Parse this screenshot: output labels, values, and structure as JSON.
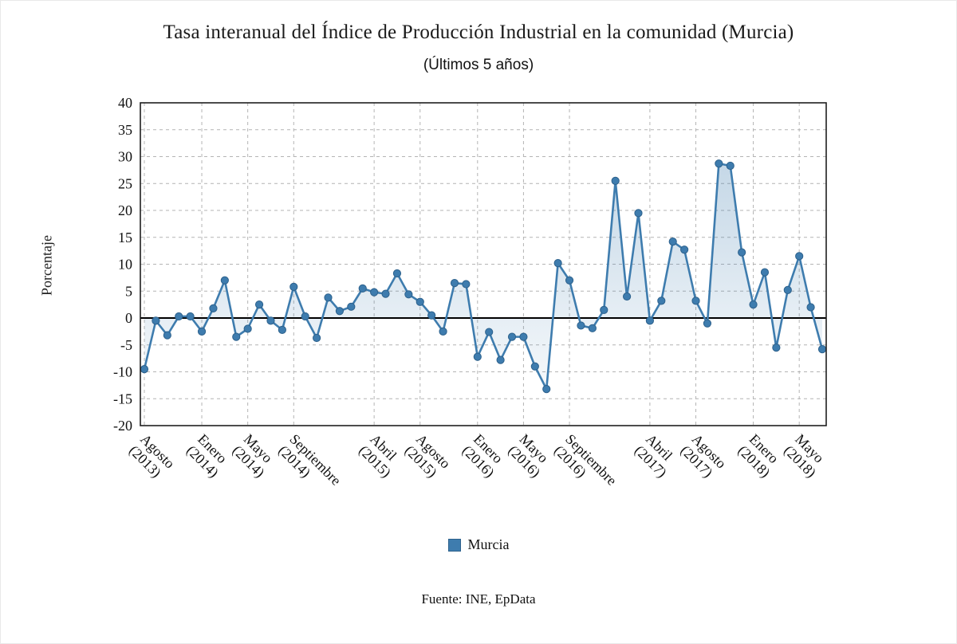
{
  "title": "Tasa interanual del Índice de Producción Industrial en la comunidad (Murcia)",
  "subtitle": "(Últimos 5 años)",
  "source": "Fuente: INE, EpData",
  "accent_color": "#3e7cae",
  "chart_data": {
    "type": "line",
    "title": "Tasa interanual del Índice de Producción Industrial en la comunidad (Murcia)",
    "subtitle": "(Últimos 5 años)",
    "xlabel": "",
    "ylabel": "Porcentaje",
    "ylim": [
      -20,
      40
    ],
    "ytick_step": 5,
    "grid": "dashed",
    "legend_position": "bottom",
    "frequency": "monthly",
    "x_start": "Agosto 2013",
    "x_end": "Julio 2018",
    "series": [
      {
        "name": "Murcia",
        "color": "#3e7cae",
        "values": [
          -9.5,
          -0.5,
          -3.2,
          0.3,
          0.3,
          -2.5,
          1.8,
          7.0,
          -3.5,
          -2.0,
          2.5,
          -0.5,
          -2.2,
          5.8,
          0.3,
          -3.7,
          3.8,
          1.3,
          2.1,
          5.5,
          4.8,
          4.5,
          8.3,
          4.4,
          3.0,
          0.5,
          -2.5,
          6.5,
          6.3,
          -7.2,
          -2.6,
          -7.8,
          -3.5,
          -3.5,
          -9.0,
          -13.2,
          10.2,
          7.0,
          -1.4,
          -1.9,
          1.5,
          25.5,
          4.0,
          19.5,
          -0.5,
          3.2,
          14.2,
          12.7,
          3.2,
          -1.0,
          28.7,
          28.3,
          12.2,
          2.5,
          8.5,
          -5.5,
          5.2,
          11.5,
          2.0,
          -5.8
        ]
      }
    ],
    "x_ticks": [
      {
        "index": 0,
        "month": "Agosto",
        "year": "(2013)"
      },
      {
        "index": 5,
        "month": "Enero",
        "year": "(2014)"
      },
      {
        "index": 9,
        "month": "Mayo",
        "year": "(2014)"
      },
      {
        "index": 13,
        "month": "Septiembre",
        "year": "(2014)"
      },
      {
        "index": 20,
        "month": "Abril",
        "year": "(2015)"
      },
      {
        "index": 24,
        "month": "Agosto",
        "year": "(2015)"
      },
      {
        "index": 29,
        "month": "Enero",
        "year": "(2016)"
      },
      {
        "index": 33,
        "month": "Mayo",
        "year": "(2016)"
      },
      {
        "index": 37,
        "month": "Septiembre",
        "year": "(2016)"
      },
      {
        "index": 44,
        "month": "Abril",
        "year": "(2017)"
      },
      {
        "index": 48,
        "month": "Agosto",
        "year": "(2017)"
      },
      {
        "index": 53,
        "month": "Enero",
        "year": "(2018)"
      },
      {
        "index": 57,
        "month": "Mayo",
        "year": "(2018)"
      }
    ]
  }
}
